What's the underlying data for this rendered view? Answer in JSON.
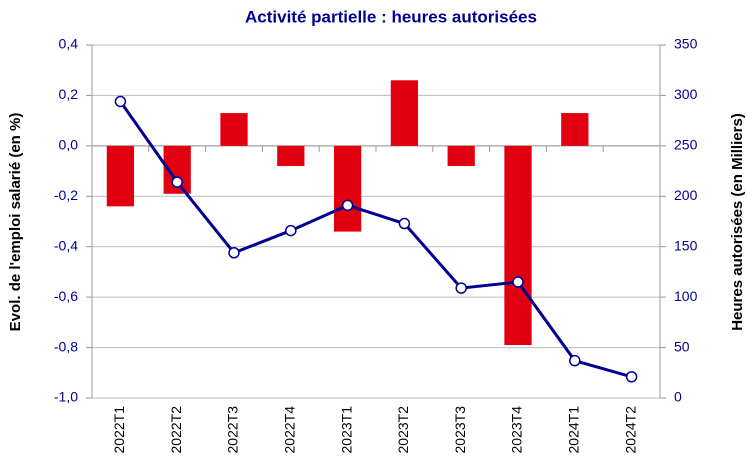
{
  "chart_data": {
    "type": "bar_line",
    "title": "Activité partielle : heures autorisées",
    "ylabel": "Evol. de l'emploi salarié (en %)",
    "y2label": "Heures autorisées (en Milliers)",
    "categories": [
      "2022T1",
      "2022T2",
      "2022T3",
      "2022T4",
      "2023T1",
      "2023T2",
      "2023T3",
      "2023T4",
      "2024T1",
      "2024T2"
    ],
    "series": [
      {
        "type": "bar",
        "color": "#e1000f",
        "values": [
          -0.24,
          -0.19,
          0.13,
          -0.08,
          -0.34,
          0.26,
          -0.08,
          -0.79,
          0.13,
          0
        ]
      },
      {
        "type": "line",
        "axis": "y2",
        "color": "#000091",
        "values": [
          294,
          214,
          144,
          166,
          191,
          173,
          109,
          115,
          37,
          21
        ]
      }
    ],
    "ylim": [
      -1,
      0.4
    ],
    "yticks": [
      {
        "value": -1,
        "label": "-1,0"
      },
      {
        "value": -0.8,
        "label": "-0,8"
      },
      {
        "value": -0.6,
        "label": "-0,6"
      },
      {
        "value": -0.4,
        "label": "-0,4"
      },
      {
        "value": -0.2,
        "label": "-0,2"
      },
      {
        "value": 0,
        "label": "0,0"
      },
      {
        "value": 0.2,
        "label": "0,2"
      },
      {
        "value": 0.4,
        "label": "0,4"
      }
    ],
    "y2lim": [
      0,
      350
    ],
    "y2ticks": [
      0,
      50,
      100,
      150,
      200,
      250,
      300,
      350
    ],
    "grid": true
  }
}
